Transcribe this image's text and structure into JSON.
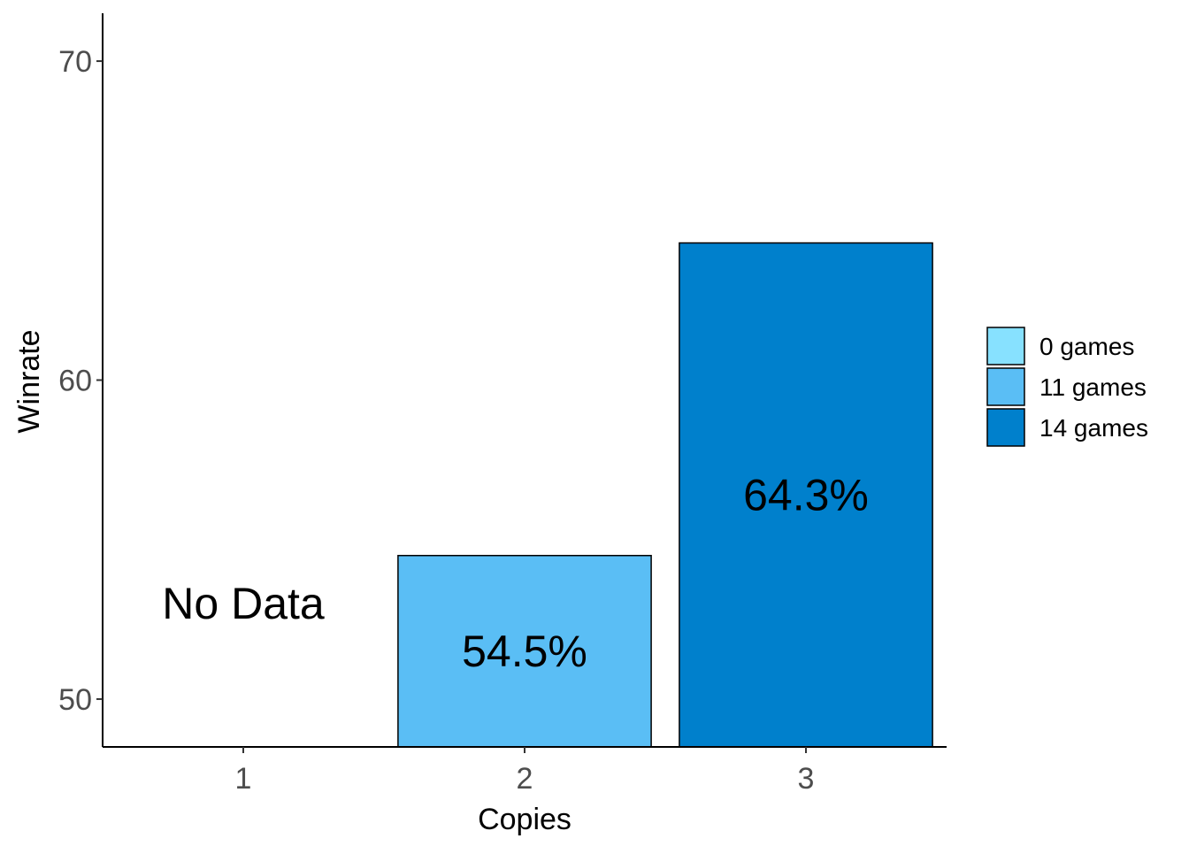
{
  "chart_data": {
    "type": "bar",
    "categories": [
      "1",
      "2",
      "3"
    ],
    "values": [
      null,
      54.5,
      64.3
    ],
    "bar_labels": [
      "No Data",
      "54.5%",
      "64.3%"
    ],
    "series_groups": [
      "0 games",
      "11 games",
      "14 games"
    ],
    "colors": [
      "#87E1FF",
      "#5ABEF5",
      "#0080CC"
    ],
    "title": "",
    "xlabel": "Copies",
    "ylabel": "Winrate",
    "ylim": [
      48.5,
      71.5
    ],
    "yticks": [
      50,
      60,
      70
    ],
    "grid": false,
    "legend": {
      "position": "right",
      "entries": [
        "0 games",
        "11 games",
        "14 games"
      ]
    }
  }
}
